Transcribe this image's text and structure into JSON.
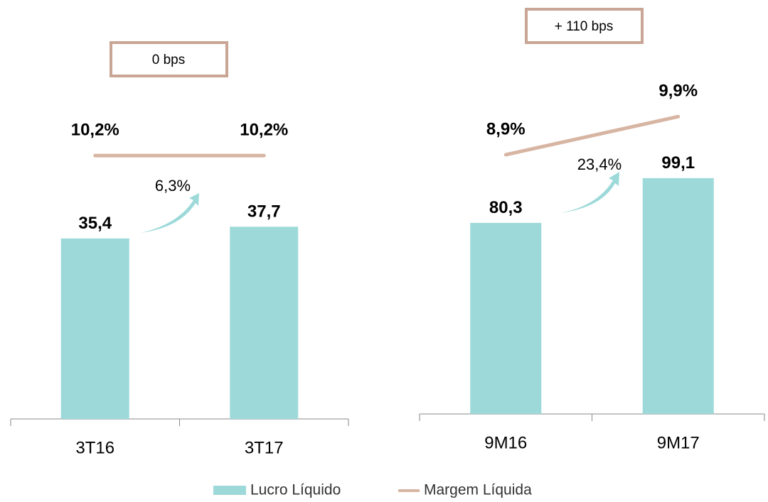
{
  "chart_data": [
    {
      "type": "bar",
      "categories": [
        "3T16",
        "3T17"
      ],
      "series": [
        {
          "name": "Lucro Líquido",
          "color": "#9dd9d9",
          "values": [
            35.4,
            37.7
          ],
          "value_labels": [
            "35,4",
            "37,7"
          ]
        },
        {
          "name": "Margem Líquida",
          "color": "#d7b5a2",
          "values": [
            10.2,
            10.2
          ],
          "value_labels": [
            "10,2%",
            "10,2%"
          ],
          "axis": "y2"
        }
      ],
      "ylim": [
        0,
        78
      ],
      "y2lim": [
        0,
        15.4
      ],
      "annotations": [
        "0 bps",
        "6,3%"
      ]
    },
    {
      "type": "bar",
      "categories": [
        "9M16",
        "9M17"
      ],
      "series": [
        {
          "name": "Lucro Líquido",
          "color": "#9dd9d9",
          "values": [
            80.3,
            99.1
          ],
          "value_labels": [
            "80,3",
            "99,1"
          ]
        },
        {
          "name": "Margem Líquida",
          "color": "#d7b5a2",
          "values": [
            8.9,
            9.9
          ],
          "value_labels": [
            "8,9%",
            "9,9%"
          ],
          "axis": "y2"
        }
      ],
      "ylim": [
        0,
        165
      ],
      "y2lim": [
        2.1,
        12.4
      ],
      "annotations": [
        "+ 110 bps",
        "23,4%"
      ]
    }
  ]
}
